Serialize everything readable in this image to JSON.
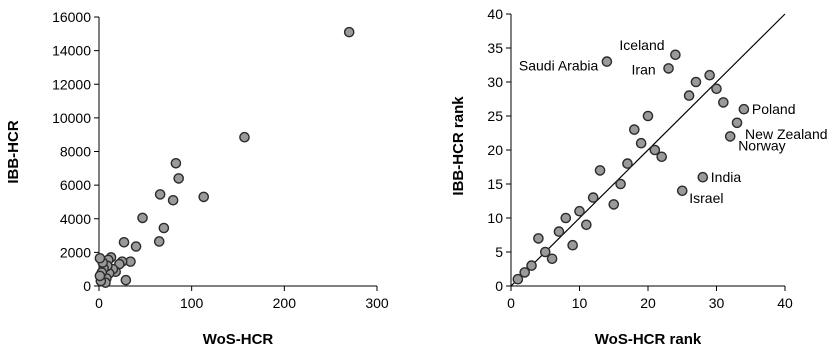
{
  "chart_data": [
    {
      "type": "scatter",
      "xlabel": "WoS-HCR",
      "ylabel": "IBB-HCR",
      "xlim": [
        0,
        300
      ],
      "ylim": [
        0,
        16000
      ],
      "xticks": [
        0,
        100,
        200,
        300
      ],
      "yticks": [
        0,
        2000,
        4000,
        6000,
        8000,
        10000,
        12000,
        14000,
        16000
      ],
      "grid": false,
      "points": [
        [
          270,
          15100
        ],
        [
          157,
          8850
        ],
        [
          113,
          5300
        ],
        [
          86,
          6400
        ],
        [
          83,
          7300
        ],
        [
          80,
          5100
        ],
        [
          70,
          3450
        ],
        [
          66,
          5450
        ],
        [
          65,
          2650
        ],
        [
          47,
          4050
        ],
        [
          40,
          2350
        ],
        [
          34,
          1450
        ],
        [
          29,
          350
        ],
        [
          27,
          2600
        ],
        [
          25,
          1450
        ],
        [
          22,
          1300
        ],
        [
          18,
          850
        ],
        [
          15,
          1000
        ],
        [
          13,
          1700
        ],
        [
          11,
          750
        ],
        [
          10,
          1550
        ],
        [
          9,
          1200
        ],
        [
          8,
          450
        ],
        [
          7,
          200
        ],
        [
          5,
          1050
        ],
        [
          4,
          1400
        ],
        [
          3,
          800
        ],
        [
          2,
          300
        ],
        [
          1,
          600
        ],
        [
          1,
          1650
        ]
      ]
    },
    {
      "type": "scatter",
      "xlabel": "WoS-HCR rank",
      "ylabel": "IBB-HCR rank",
      "xlim": [
        0,
        40
      ],
      "ylim": [
        0,
        40
      ],
      "xticks": [
        0,
        10,
        20,
        30,
        40
      ],
      "yticks": [
        0,
        5,
        10,
        15,
        20,
        25,
        30,
        35,
        40
      ],
      "grid": false,
      "reference_line": {
        "from": [
          0,
          0
        ],
        "to": [
          40,
          40
        ]
      },
      "points": [
        [
          1,
          1
        ],
        [
          2,
          2
        ],
        [
          3,
          3
        ],
        [
          4,
          7
        ],
        [
          5,
          5
        ],
        [
          6,
          4
        ],
        [
          7,
          8
        ],
        [
          8,
          10
        ],
        [
          9,
          6
        ],
        [
          10,
          11
        ],
        [
          11,
          9
        ],
        [
          12,
          13
        ],
        [
          13,
          17
        ],
        [
          14,
          33
        ],
        [
          15,
          12
        ],
        [
          16,
          15
        ],
        [
          17,
          18
        ],
        [
          18,
          23
        ],
        [
          19,
          21
        ],
        [
          20,
          25
        ],
        [
          21,
          20
        ],
        [
          22,
          19
        ],
        [
          23,
          32
        ],
        [
          24,
          34
        ],
        [
          25,
          14
        ],
        [
          26,
          28
        ],
        [
          27,
          30
        ],
        [
          28,
          16
        ],
        [
          29,
          31
        ],
        [
          30,
          29
        ],
        [
          31,
          27
        ],
        [
          32,
          22
        ],
        [
          33,
          24
        ],
        [
          34,
          26
        ]
      ],
      "annotations": [
        {
          "text": "Iceland",
          "x": 24,
          "y": 34
        },
        {
          "text": "Saudi Arabia",
          "x": 14,
          "y": 33
        },
        {
          "text": "Iran",
          "x": 23,
          "y": 32
        },
        {
          "text": "Poland",
          "x": 34,
          "y": 26
        },
        {
          "text": "New Zealand",
          "x": 33,
          "y": 24
        },
        {
          "text": "Norway",
          "x": 32,
          "y": 22
        },
        {
          "text": "India",
          "x": 28,
          "y": 16
        },
        {
          "text": "Israel",
          "x": 25,
          "y": 14
        }
      ]
    }
  ]
}
